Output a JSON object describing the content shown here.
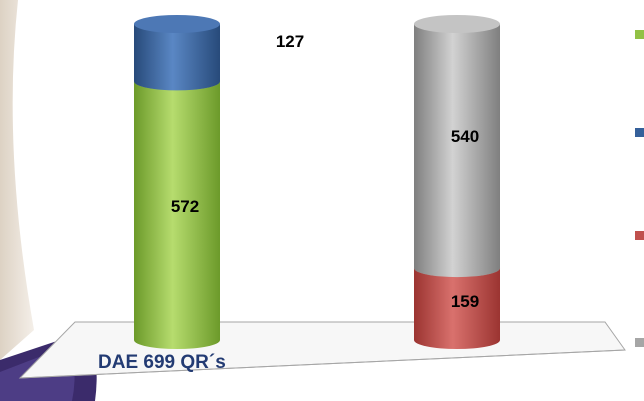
{
  "colors": {
    "green": "#92c145",
    "blue": "#35609a",
    "red": "#c0504d",
    "gray": "#a6a6a6",
    "label_dark": "#233b73"
  },
  "chart_data": {
    "type": "bar",
    "stacked": true,
    "style": "3d-cylinder",
    "categories": [
      "DAE 699 QR´s",
      ""
    ],
    "series": [
      {
        "values": [
          572,
          0
        ],
        "color": "#92c145"
      },
      {
        "values": [
          127,
          0
        ],
        "color": "#35609a"
      },
      {
        "values": [
          0,
          159
        ],
        "color": "#c0504d"
      },
      {
        "values": [
          0,
          540
        ],
        "color": "#a6a6a6"
      }
    ],
    "data_labels": [
      "572",
      "127",
      "159",
      "540"
    ],
    "legend": {
      "placement": "right",
      "entries": 4
    },
    "ylim": [
      0,
      699
    ]
  }
}
